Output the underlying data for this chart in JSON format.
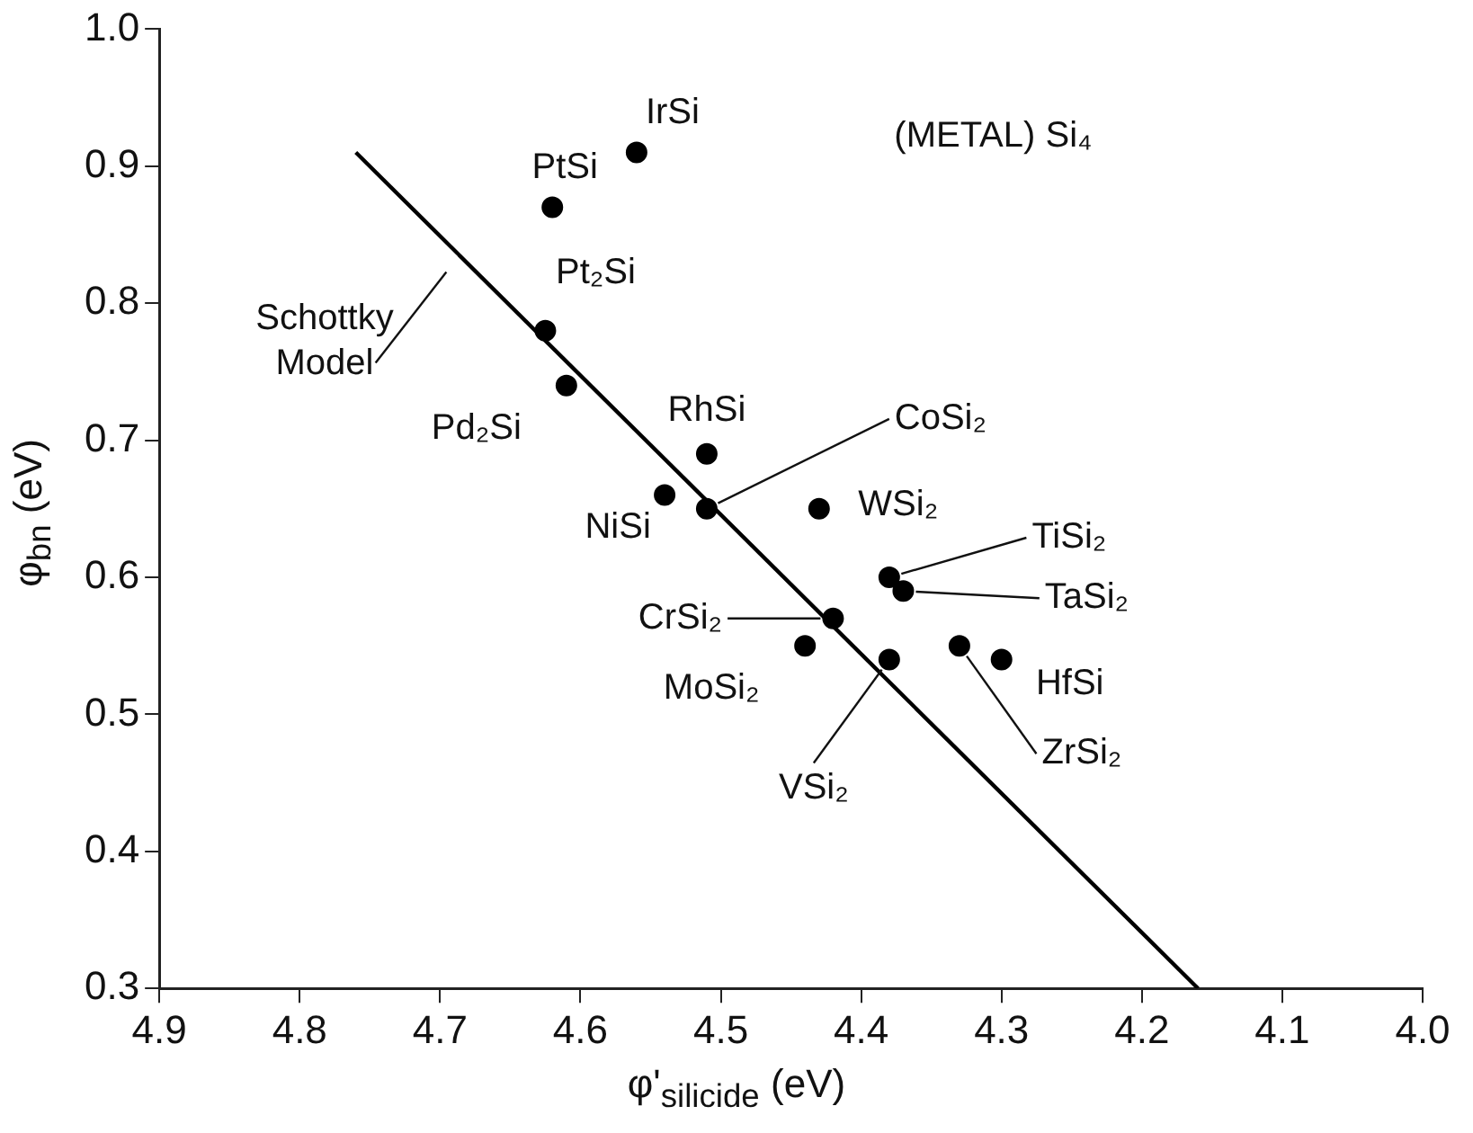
{
  "chart_data": {
    "type": "scatter",
    "xlabel": "φ'$_{silicide}$ (eV)",
    "ylabel": "φ$_{bn}$ (eV)",
    "xlim": [
      4.9,
      4.0
    ],
    "xticks": [
      4.9,
      4.8,
      4.7,
      4.6,
      4.5,
      4.4,
      4.3,
      4.2,
      4.1,
      {
        "value": 4.0,
        "label": "4.0"
      }
    ],
    "ylim": [
      0.3,
      1.0
    ],
    "yticks": [
      0.3,
      0.4,
      0.5,
      0.6,
      0.7,
      0.8,
      0.9,
      {
        "value": 1.0,
        "label": "1.0"
      }
    ],
    "grid": false,
    "legend": false,
    "marker": "circle",
    "series": [
      {
        "type": "scatter",
        "color": "#000000",
        "x": [
          4.56,
          4.62,
          4.625,
          4.61,
          4.51,
          4.54,
          4.51,
          4.43,
          4.38,
          4.37,
          4.42,
          4.44,
          4.38,
          4.33,
          4.3
        ],
        "values": [
          0.91,
          0.87,
          0.78,
          0.74,
          0.69,
          0.66,
          0.65,
          0.65,
          0.6,
          0.59,
          0.57,
          0.55,
          0.54,
          0.55,
          0.54
        ]
      },
      {
        "type": "line",
        "color": "#000000",
        "line_style": "solid",
        "marker": "none",
        "x": [
          4.76,
          4.16
        ],
        "values": [
          0.91,
          0.3
        ]
      }
    ],
    "annotations": [
      {
        "text": "IrSi",
        "x": 4.56,
        "y": 0.91
      },
      {
        "text": "PtSi",
        "x": 4.62,
        "y": 0.87
      },
      {
        "text": "Pt₂Si",
        "x": 4.625,
        "y": 0.78
      },
      {
        "text": "Pd₂Si",
        "x": 4.61,
        "y": 0.74
      },
      {
        "text": "RhSi",
        "x": 4.51,
        "y": 0.69
      },
      {
        "text": "NiSi",
        "x": 4.54,
        "y": 0.66
      },
      {
        "text": "CoSi₂",
        "x": 4.51,
        "y": 0.65
      },
      {
        "text": "WSi₂",
        "x": 4.43,
        "y": 0.65
      },
      {
        "text": "TiSi₂",
        "x": 4.38,
        "y": 0.6
      },
      {
        "text": "TaSi₂",
        "x": 4.37,
        "y": 0.59
      },
      {
        "text": "CrSi₂",
        "x": 4.42,
        "y": 0.57
      },
      {
        "text": "MoSi₂",
        "x": 4.44,
        "y": 0.55
      },
      {
        "text": "VSi₂",
        "x": 4.38,
        "y": 0.54
      },
      {
        "text": "ZrSi₂",
        "x": 4.33,
        "y": 0.55
      },
      {
        "text": "HfSi",
        "x": 4.3,
        "y": 0.54
      },
      {
        "text": "Schottky Model",
        "x": 4.69,
        "y": 0.83
      },
      "(METAL) Si₄"
    ]
  }
}
